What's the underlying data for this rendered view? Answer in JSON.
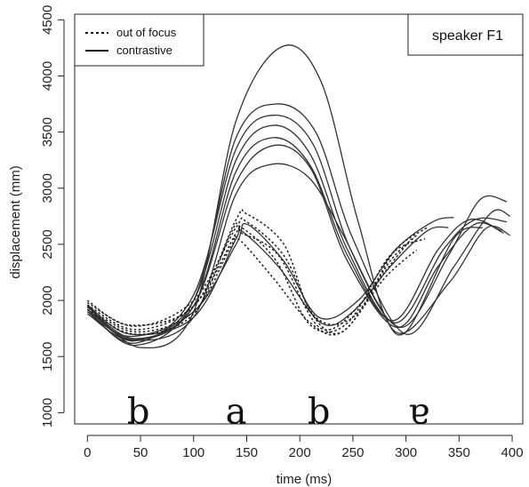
{
  "chart_data": {
    "type": "line",
    "xlabel": "time (ms)",
    "ylabel": "displacement (mm)",
    "xlim": [
      -12,
      410
    ],
    "ylim": [
      900,
      4550
    ],
    "xticks": [
      0,
      50,
      100,
      150,
      200,
      250,
      300,
      350,
      400
    ],
    "yticks": [
      1000,
      1500,
      2000,
      2500,
      3000,
      3500,
      4000,
      4500
    ],
    "legend": {
      "position": "top-left",
      "entries": [
        {
          "label": "out of focus",
          "style": "dotted"
        },
        {
          "label": "contrastive",
          "style": "solid"
        }
      ]
    },
    "annotation_box": "speaker F1",
    "segment_labels": [
      {
        "text": "b",
        "x": 48
      },
      {
        "text": "a",
        "x": 140
      },
      {
        "text": "b",
        "x": 218
      },
      {
        "text": "ɐ",
        "x": 312
      }
    ],
    "series": [
      {
        "style": "solid",
        "points": [
          [
            0,
            1950
          ],
          [
            50,
            1580
          ],
          [
            100,
            1900
          ],
          [
            140,
            3600
          ],
          [
            183,
            4260
          ],
          [
            220,
            3950
          ],
          [
            255,
            2700
          ],
          [
            290,
            1720
          ],
          [
            340,
            2150
          ],
          [
            375,
            2640
          ],
          [
            398,
            2580
          ]
        ]
      },
      {
        "style": "solid",
        "points": [
          [
            0,
            1920
          ],
          [
            45,
            1600
          ],
          [
            100,
            2000
          ],
          [
            140,
            3450
          ],
          [
            178,
            3750
          ],
          [
            215,
            3500
          ],
          [
            250,
            2550
          ],
          [
            300,
            1700
          ],
          [
            345,
            2300
          ],
          [
            380,
            2780
          ],
          [
            398,
            2750
          ]
        ]
      },
      {
        "style": "solid",
        "points": [
          [
            0,
            1900
          ],
          [
            45,
            1620
          ],
          [
            100,
            2050
          ],
          [
            140,
            3350
          ],
          [
            175,
            3650
          ],
          [
            212,
            3400
          ],
          [
            248,
            2450
          ],
          [
            295,
            1760
          ],
          [
            340,
            2400
          ],
          [
            370,
            2900
          ],
          [
            395,
            2880
          ]
        ]
      },
      {
        "style": "solid",
        "points": [
          [
            0,
            1880
          ],
          [
            45,
            1640
          ],
          [
            100,
            2000
          ],
          [
            140,
            3250
          ],
          [
            175,
            3560
          ],
          [
            210,
            3300
          ],
          [
            245,
            2450
          ],
          [
            290,
            1800
          ],
          [
            335,
            2450
          ],
          [
            365,
            2720
          ],
          [
            395,
            2700
          ]
        ]
      },
      {
        "style": "solid",
        "points": [
          [
            0,
            1920
          ],
          [
            45,
            1650
          ],
          [
            100,
            1950
          ],
          [
            140,
            3150
          ],
          [
            175,
            3450
          ],
          [
            210,
            3200
          ],
          [
            245,
            2400
          ],
          [
            288,
            1820
          ],
          [
            330,
            2450
          ],
          [
            360,
            2720
          ],
          [
            390,
            2620
          ]
        ]
      },
      {
        "style": "solid",
        "points": [
          [
            0,
            1940
          ],
          [
            45,
            1660
          ],
          [
            100,
            1950
          ],
          [
            140,
            3050
          ],
          [
            175,
            3380
          ],
          [
            210,
            3180
          ],
          [
            245,
            2350
          ],
          [
            292,
            1760
          ],
          [
            330,
            2300
          ],
          [
            365,
            2680
          ],
          [
            392,
            2600
          ]
        ]
      },
      {
        "style": "solid",
        "points": [
          [
            0,
            1950
          ],
          [
            40,
            1650
          ],
          [
            100,
            1850
          ],
          [
            140,
            2950
          ],
          [
            172,
            3210
          ],
          [
            208,
            3100
          ],
          [
            240,
            2600
          ],
          [
            275,
            1950
          ],
          [
            300,
            1720
          ],
          [
            345,
            2550
          ],
          [
            372,
            2650
          ]
        ]
      },
      {
        "style": "solid",
        "points": [
          [
            0,
            1900
          ],
          [
            40,
            1680
          ],
          [
            100,
            1900
          ],
          [
            140,
            2500
          ],
          [
            150,
            2680
          ],
          [
            185,
            2350
          ],
          [
            218,
            1850
          ],
          [
            255,
            2000
          ],
          [
            290,
            2450
          ],
          [
            325,
            2700
          ],
          [
            345,
            2740
          ]
        ]
      },
      {
        "style": "solid",
        "points": [
          [
            0,
            1960
          ],
          [
            40,
            1700
          ],
          [
            100,
            1850
          ],
          [
            140,
            2550
          ],
          [
            145,
            2620
          ],
          [
            180,
            2300
          ],
          [
            220,
            1800
          ],
          [
            250,
            1900
          ],
          [
            285,
            2300
          ],
          [
            320,
            2620
          ],
          [
            340,
            2650
          ]
        ]
      },
      {
        "style": "dotted",
        "points": [
          [
            0,
            2000
          ],
          [
            40,
            1780
          ],
          [
            100,
            1950
          ],
          [
            140,
            2720
          ],
          [
            150,
            2770
          ],
          [
            185,
            2500
          ],
          [
            210,
            1900
          ],
          [
            240,
            1720
          ],
          [
            280,
            2250
          ],
          [
            305,
            2550
          ]
        ]
      },
      {
        "style": "dotted",
        "points": [
          [
            0,
            1980
          ],
          [
            45,
            1770
          ],
          [
            100,
            2000
          ],
          [
            140,
            2650
          ],
          [
            150,
            2700
          ],
          [
            185,
            2400
          ],
          [
            215,
            1850
          ],
          [
            250,
            1850
          ],
          [
            285,
            2350
          ],
          [
            310,
            2580
          ]
        ]
      },
      {
        "style": "dotted",
        "points": [
          [
            0,
            1960
          ],
          [
            45,
            1740
          ],
          [
            100,
            1950
          ],
          [
            140,
            2600
          ],
          [
            145,
            2600
          ],
          [
            180,
            2400
          ],
          [
            220,
            1750
          ],
          [
            260,
            2000
          ],
          [
            290,
            2450
          ],
          [
            320,
            2650
          ]
        ]
      },
      {
        "style": "dotted",
        "points": [
          [
            0,
            1940
          ],
          [
            45,
            1720
          ],
          [
            100,
            1900
          ],
          [
            135,
            2480
          ],
          [
            142,
            2550
          ],
          [
            175,
            2200
          ],
          [
            210,
            1800
          ],
          [
            240,
            1720
          ],
          [
            280,
            2200
          ],
          [
            310,
            2450
          ]
        ]
      },
      {
        "style": "dotted",
        "points": [
          [
            0,
            1920
          ],
          [
            45,
            1700
          ],
          [
            100,
            1880
          ],
          [
            135,
            2600
          ],
          [
            145,
            2650
          ],
          [
            178,
            2350
          ],
          [
            210,
            1780
          ],
          [
            245,
            1800
          ],
          [
            285,
            2400
          ],
          [
            318,
            2550
          ]
        ]
      }
    ]
  }
}
